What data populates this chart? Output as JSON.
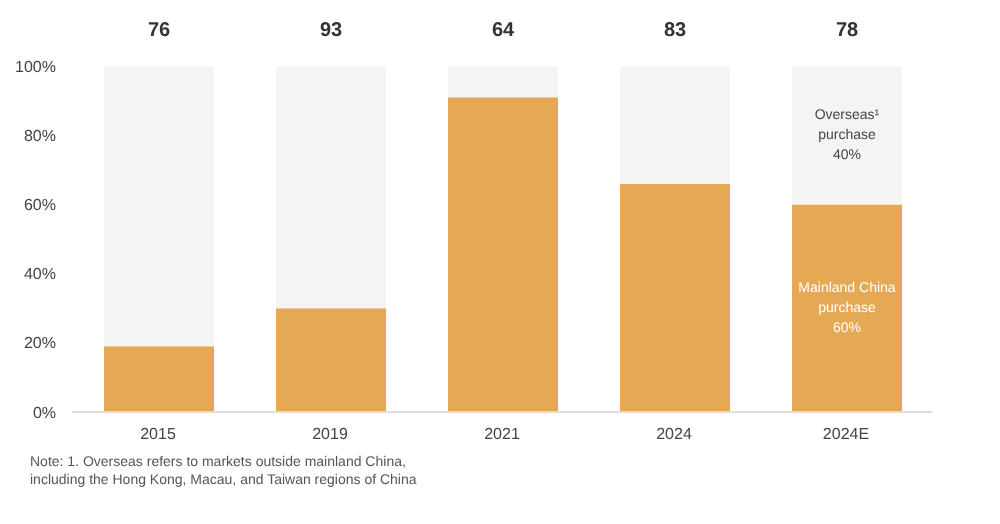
{
  "chart_data": {
    "type": "bar",
    "stacked": true,
    "categories": [
      "2015",
      "2019",
      "2021",
      "2024",
      "2024E"
    ],
    "series": [
      {
        "name": "Mainland China purchase",
        "color": "#e5a955",
        "values": [
          19,
          30,
          91,
          66,
          60
        ],
        "value_labels": [
          null,
          null,
          null,
          null,
          "60%"
        ]
      },
      {
        "name": "Overseas¹ purchase",
        "color": "#f4f4f4",
        "values": [
          81,
          70,
          9,
          34,
          40
        ],
        "value_labels": [
          null,
          null,
          null,
          null,
          "40%"
        ]
      }
    ],
    "ylim": [
      0,
      100
    ],
    "yticks": [
      {
        "value": 0,
        "label": "0%"
      },
      {
        "value": 20,
        "label": "20%"
      },
      {
        "value": 40,
        "label": "40%"
      },
      {
        "value": 60,
        "label": "60%"
      },
      {
        "value": 80,
        "label": "80%"
      },
      {
        "value": 100,
        "label": "100%"
      }
    ],
    "grid": false,
    "legend": false,
    "annotations": [
      "76",
      "93",
      "64",
      "83",
      "78",
      "Note: 1. Overseas refers to markets outside mainland China, including the Hong Kong, Macau, and Taiwan regions of China"
    ]
  }
}
